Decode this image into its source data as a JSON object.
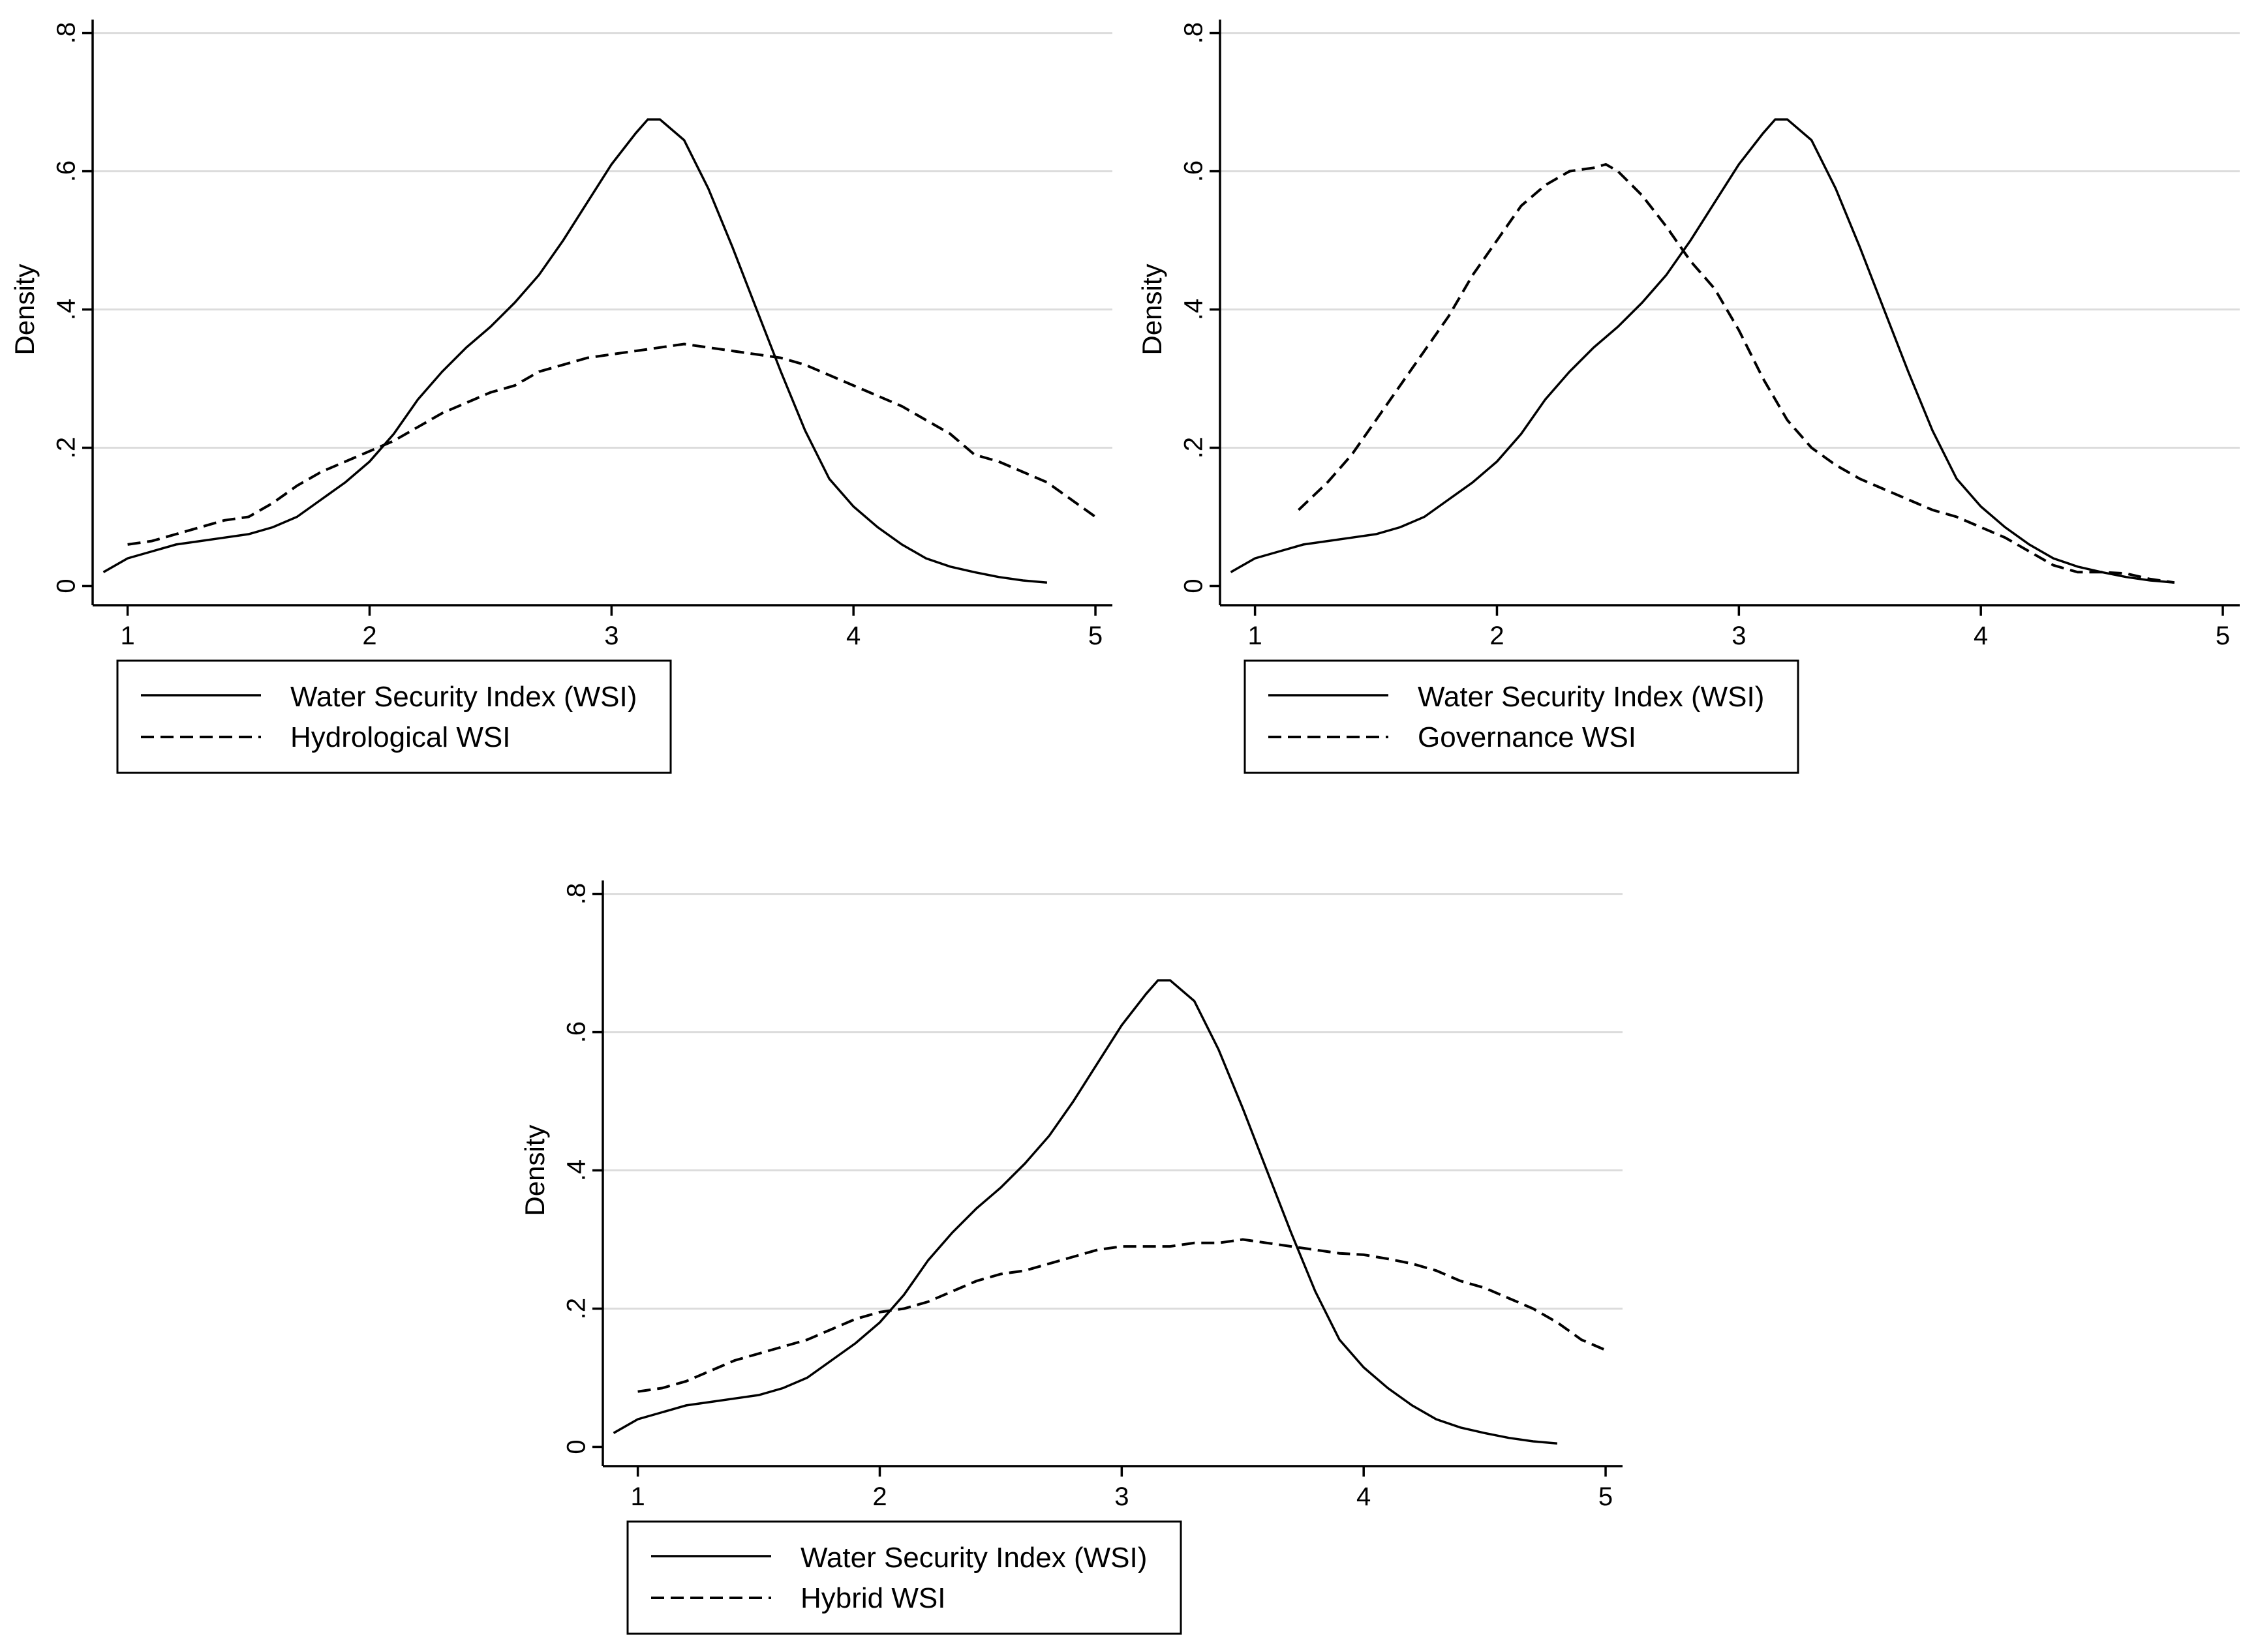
{
  "chart_data": [
    {
      "type": "line",
      "title": "",
      "xlabel": "",
      "ylabel": "Density",
      "xlim": [
        0.85,
        5.07
      ],
      "ylim": [
        -0.025,
        0.81
      ],
      "xticks": [
        "1",
        "2",
        "3",
        "4",
        "5"
      ],
      "yticks": [
        "0",
        ".2",
        ".4",
        ".6",
        ".8"
      ],
      "legend": "bottom-left",
      "series": [
        {
          "name": "Water Security Index (WSI)",
          "style": "solid",
          "x": [
            0.9,
            1.0,
            1.1,
            1.2,
            1.3,
            1.4,
            1.5,
            1.6,
            1.7,
            1.8,
            1.9,
            2.0,
            2.1,
            2.2,
            2.3,
            2.4,
            2.5,
            2.6,
            2.7,
            2.8,
            2.9,
            3.0,
            3.1,
            3.15,
            3.2,
            3.3,
            3.4,
            3.5,
            3.6,
            3.7,
            3.8,
            3.9,
            4.0,
            4.1,
            4.2,
            4.3,
            4.4,
            4.5,
            4.6,
            4.7,
            4.8
          ],
          "y": [
            0.02,
            0.04,
            0.05,
            0.06,
            0.065,
            0.07,
            0.075,
            0.085,
            0.1,
            0.125,
            0.15,
            0.18,
            0.22,
            0.27,
            0.31,
            0.345,
            0.375,
            0.41,
            0.45,
            0.5,
            0.555,
            0.61,
            0.655,
            0.675,
            0.675,
            0.645,
            0.575,
            0.49,
            0.4,
            0.31,
            0.225,
            0.155,
            0.115,
            0.085,
            0.06,
            0.04,
            0.028,
            0.02,
            0.013,
            0.008,
            0.005
          ]
        },
        {
          "name": "Hydrological WSI",
          "style": "dashed",
          "x": [
            1.0,
            1.1,
            1.2,
            1.3,
            1.4,
            1.5,
            1.6,
            1.7,
            1.8,
            1.9,
            2.0,
            2.1,
            2.2,
            2.3,
            2.4,
            2.5,
            2.6,
            2.7,
            2.8,
            2.9,
            3.0,
            3.1,
            3.2,
            3.3,
            3.4,
            3.5,
            3.6,
            3.7,
            3.8,
            3.9,
            4.0,
            4.1,
            4.2,
            4.3,
            4.4,
            4.5,
            4.6,
            4.7,
            4.8,
            4.9,
            5.0
          ],
          "y": [
            0.06,
            0.065,
            0.075,
            0.085,
            0.095,
            0.1,
            0.12,
            0.145,
            0.165,
            0.18,
            0.195,
            0.21,
            0.23,
            0.25,
            0.265,
            0.28,
            0.29,
            0.31,
            0.32,
            0.33,
            0.335,
            0.34,
            0.345,
            0.35,
            0.345,
            0.34,
            0.335,
            0.33,
            0.32,
            0.305,
            0.29,
            0.275,
            0.26,
            0.24,
            0.22,
            0.19,
            0.18,
            0.165,
            0.15,
            0.125,
            0.1
          ]
        }
      ]
    },
    {
      "type": "line",
      "title": "",
      "xlabel": "",
      "ylabel": "Density",
      "xlim": [
        0.85,
        5.07
      ],
      "ylim": [
        -0.025,
        0.81
      ],
      "xticks": [
        "1",
        "2",
        "3",
        "4",
        "5"
      ],
      "yticks": [
        "0",
        ".2",
        ".4",
        ".6",
        ".8"
      ],
      "legend": "bottom-left",
      "series": [
        {
          "name": "Water Security Index (WSI)",
          "style": "solid",
          "x": [
            0.9,
            1.0,
            1.1,
            1.2,
            1.3,
            1.4,
            1.5,
            1.6,
            1.7,
            1.8,
            1.9,
            2.0,
            2.1,
            2.2,
            2.3,
            2.4,
            2.5,
            2.6,
            2.7,
            2.8,
            2.9,
            3.0,
            3.1,
            3.15,
            3.2,
            3.3,
            3.4,
            3.5,
            3.6,
            3.7,
            3.8,
            3.9,
            4.0,
            4.1,
            4.2,
            4.3,
            4.4,
            4.5,
            4.6,
            4.7,
            4.8
          ],
          "y": [
            0.02,
            0.04,
            0.05,
            0.06,
            0.065,
            0.07,
            0.075,
            0.085,
            0.1,
            0.125,
            0.15,
            0.18,
            0.22,
            0.27,
            0.31,
            0.345,
            0.375,
            0.41,
            0.45,
            0.5,
            0.555,
            0.61,
            0.655,
            0.675,
            0.675,
            0.645,
            0.575,
            0.49,
            0.4,
            0.31,
            0.225,
            0.155,
            0.115,
            0.085,
            0.06,
            0.04,
            0.028,
            0.02,
            0.013,
            0.008,
            0.005
          ]
        },
        {
          "name": "Governance WSI",
          "style": "dashed",
          "x": [
            1.18,
            1.3,
            1.4,
            1.5,
            1.6,
            1.7,
            1.8,
            1.9,
            2.0,
            2.1,
            2.2,
            2.3,
            2.4,
            2.45,
            2.5,
            2.6,
            2.7,
            2.8,
            2.9,
            3.0,
            3.1,
            3.2,
            3.3,
            3.4,
            3.5,
            3.6,
            3.7,
            3.8,
            3.9,
            4.0,
            4.1,
            4.2,
            4.3,
            4.4,
            4.5,
            4.6,
            4.7,
            4.8
          ],
          "y": [
            0.11,
            0.15,
            0.19,
            0.24,
            0.29,
            0.34,
            0.39,
            0.45,
            0.5,
            0.55,
            0.58,
            0.6,
            0.605,
            0.61,
            0.6,
            0.565,
            0.52,
            0.47,
            0.43,
            0.37,
            0.3,
            0.24,
            0.2,
            0.175,
            0.155,
            0.14,
            0.125,
            0.11,
            0.1,
            0.085,
            0.07,
            0.05,
            0.03,
            0.02,
            0.02,
            0.018,
            0.01,
            0.005
          ]
        }
      ]
    },
    {
      "type": "line",
      "title": "",
      "xlabel": "",
      "ylabel": "Density",
      "xlim": [
        0.85,
        5.07
      ],
      "ylim": [
        -0.025,
        0.81
      ],
      "xticks": [
        "1",
        "2",
        "3",
        "4",
        "5"
      ],
      "yticks": [
        "0",
        ".2",
        ".4",
        ".6",
        ".8"
      ],
      "legend": "bottom-left",
      "series": [
        {
          "name": "Water Security Index (WSI)",
          "style": "solid",
          "x": [
            0.9,
            1.0,
            1.1,
            1.2,
            1.3,
            1.4,
            1.5,
            1.6,
            1.7,
            1.8,
            1.9,
            2.0,
            2.1,
            2.2,
            2.3,
            2.4,
            2.5,
            2.6,
            2.7,
            2.8,
            2.9,
            3.0,
            3.1,
            3.15,
            3.2,
            3.3,
            3.4,
            3.5,
            3.6,
            3.7,
            3.8,
            3.9,
            4.0,
            4.1,
            4.2,
            4.3,
            4.4,
            4.5,
            4.6,
            4.7,
            4.8
          ],
          "y": [
            0.02,
            0.04,
            0.05,
            0.06,
            0.065,
            0.07,
            0.075,
            0.085,
            0.1,
            0.125,
            0.15,
            0.18,
            0.22,
            0.27,
            0.31,
            0.345,
            0.375,
            0.41,
            0.45,
            0.5,
            0.555,
            0.61,
            0.655,
            0.675,
            0.675,
            0.645,
            0.575,
            0.49,
            0.4,
            0.31,
            0.225,
            0.155,
            0.115,
            0.085,
            0.06,
            0.04,
            0.028,
            0.02,
            0.013,
            0.008,
            0.005
          ]
        },
        {
          "name": "Hybrid WSI",
          "style": "dashed",
          "x": [
            1.0,
            1.1,
            1.2,
            1.3,
            1.4,
            1.5,
            1.6,
            1.7,
            1.8,
            1.9,
            2.0,
            2.1,
            2.2,
            2.3,
            2.4,
            2.5,
            2.6,
            2.7,
            2.8,
            2.9,
            3.0,
            3.1,
            3.2,
            3.3,
            3.4,
            3.5,
            3.6,
            3.7,
            3.8,
            3.9,
            4.0,
            4.1,
            4.2,
            4.3,
            4.4,
            4.5,
            4.6,
            4.7,
            4.8,
            4.9,
            5.0
          ],
          "y": [
            0.08,
            0.085,
            0.095,
            0.11,
            0.125,
            0.135,
            0.145,
            0.155,
            0.17,
            0.185,
            0.195,
            0.2,
            0.21,
            0.225,
            0.24,
            0.25,
            0.255,
            0.265,
            0.275,
            0.285,
            0.29,
            0.29,
            0.29,
            0.295,
            0.295,
            0.3,
            0.295,
            0.29,
            0.285,
            0.28,
            0.278,
            0.272,
            0.265,
            0.255,
            0.24,
            0.23,
            0.215,
            0.2,
            0.18,
            0.155,
            0.14
          ]
        }
      ]
    }
  ]
}
